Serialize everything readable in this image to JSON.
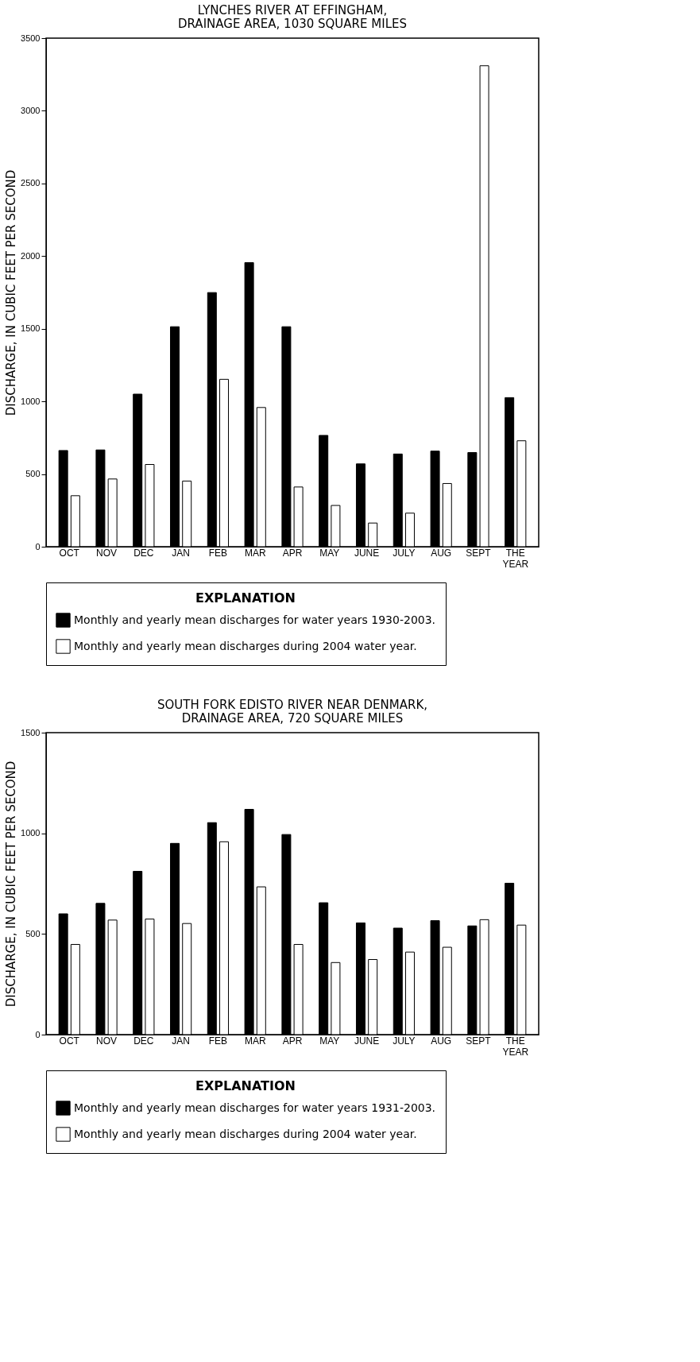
{
  "chart_data": [
    {
      "type": "bar",
      "title": [
        "LYNCHES RIVER AT EFFINGHAM,",
        "DRAINAGE AREA, 1030 SQUARE MILES"
      ],
      "ylabel": "DISCHARGE, IN CUBIC FEET PER SECOND",
      "legend_title": "EXPLANATION",
      "legend": "bottom",
      "grid": false,
      "categories": [
        "OCT",
        "NOV",
        "DEC",
        "JAN",
        "FEB",
        "MAR",
        "APR",
        "MAY",
        "JUNE",
        "JULY",
        "AUG",
        "SEPT",
        "THE YEAR"
      ],
      "ylim": [
        0,
        3500
      ],
      "yticks": [
        0,
        500,
        1000,
        1500,
        2000,
        2500,
        3000,
        3500
      ],
      "series": [
        {
          "name": "Monthly and yearly mean discharges for water years 1930-2003.",
          "color": "#000000",
          "values": [
            662,
            666,
            1050,
            1514,
            1749,
            1955,
            1514,
            766,
            570,
            638,
            658,
            648,
            1026
          ]
        },
        {
          "name": "Monthly and yearly mean discharges during 2004 water year.",
          "color": "#ffffff",
          "values": [
            351,
            466,
            566,
            452,
            1152,
            958,
            411,
            284,
            163,
            231,
            435,
            3310,
            729
          ]
        }
      ]
    },
    {
      "type": "bar",
      "title": [
        "SOUTH FORK EDISTO RIVER NEAR DENMARK,",
        "DRAINAGE AREA, 720 SQUARE MILES"
      ],
      "ylabel": "DISCHARGE, IN CUBIC FEET PER SECOND",
      "legend_title": "EXPLANATION",
      "legend": "bottom",
      "grid": false,
      "categories": [
        "OCT",
        "NOV",
        "DEC",
        "JAN",
        "FEB",
        "MAR",
        "APR",
        "MAY",
        "JUNE",
        "JULY",
        "AUG",
        "SEPT",
        "THE YEAR"
      ],
      "ylim": [
        0,
        1500
      ],
      "yticks": [
        0,
        500,
        1000,
        1500
      ],
      "series": [
        {
          "name": "Monthly and yearly mean discharges for water years 1931-2003.",
          "color": "#000000",
          "values": [
            600,
            652,
            811,
            950,
            1053,
            1119,
            994,
            655,
            555,
            529,
            566,
            540,
            752
          ]
        },
        {
          "name": "Monthly and yearly mean discharges during 2004 water year.",
          "color": "#ffffff",
          "values": [
            448,
            569,
            574,
            552,
            958,
            734,
            448,
            358,
            373,
            410,
            434,
            571,
            544
          ]
        }
      ]
    }
  ]
}
